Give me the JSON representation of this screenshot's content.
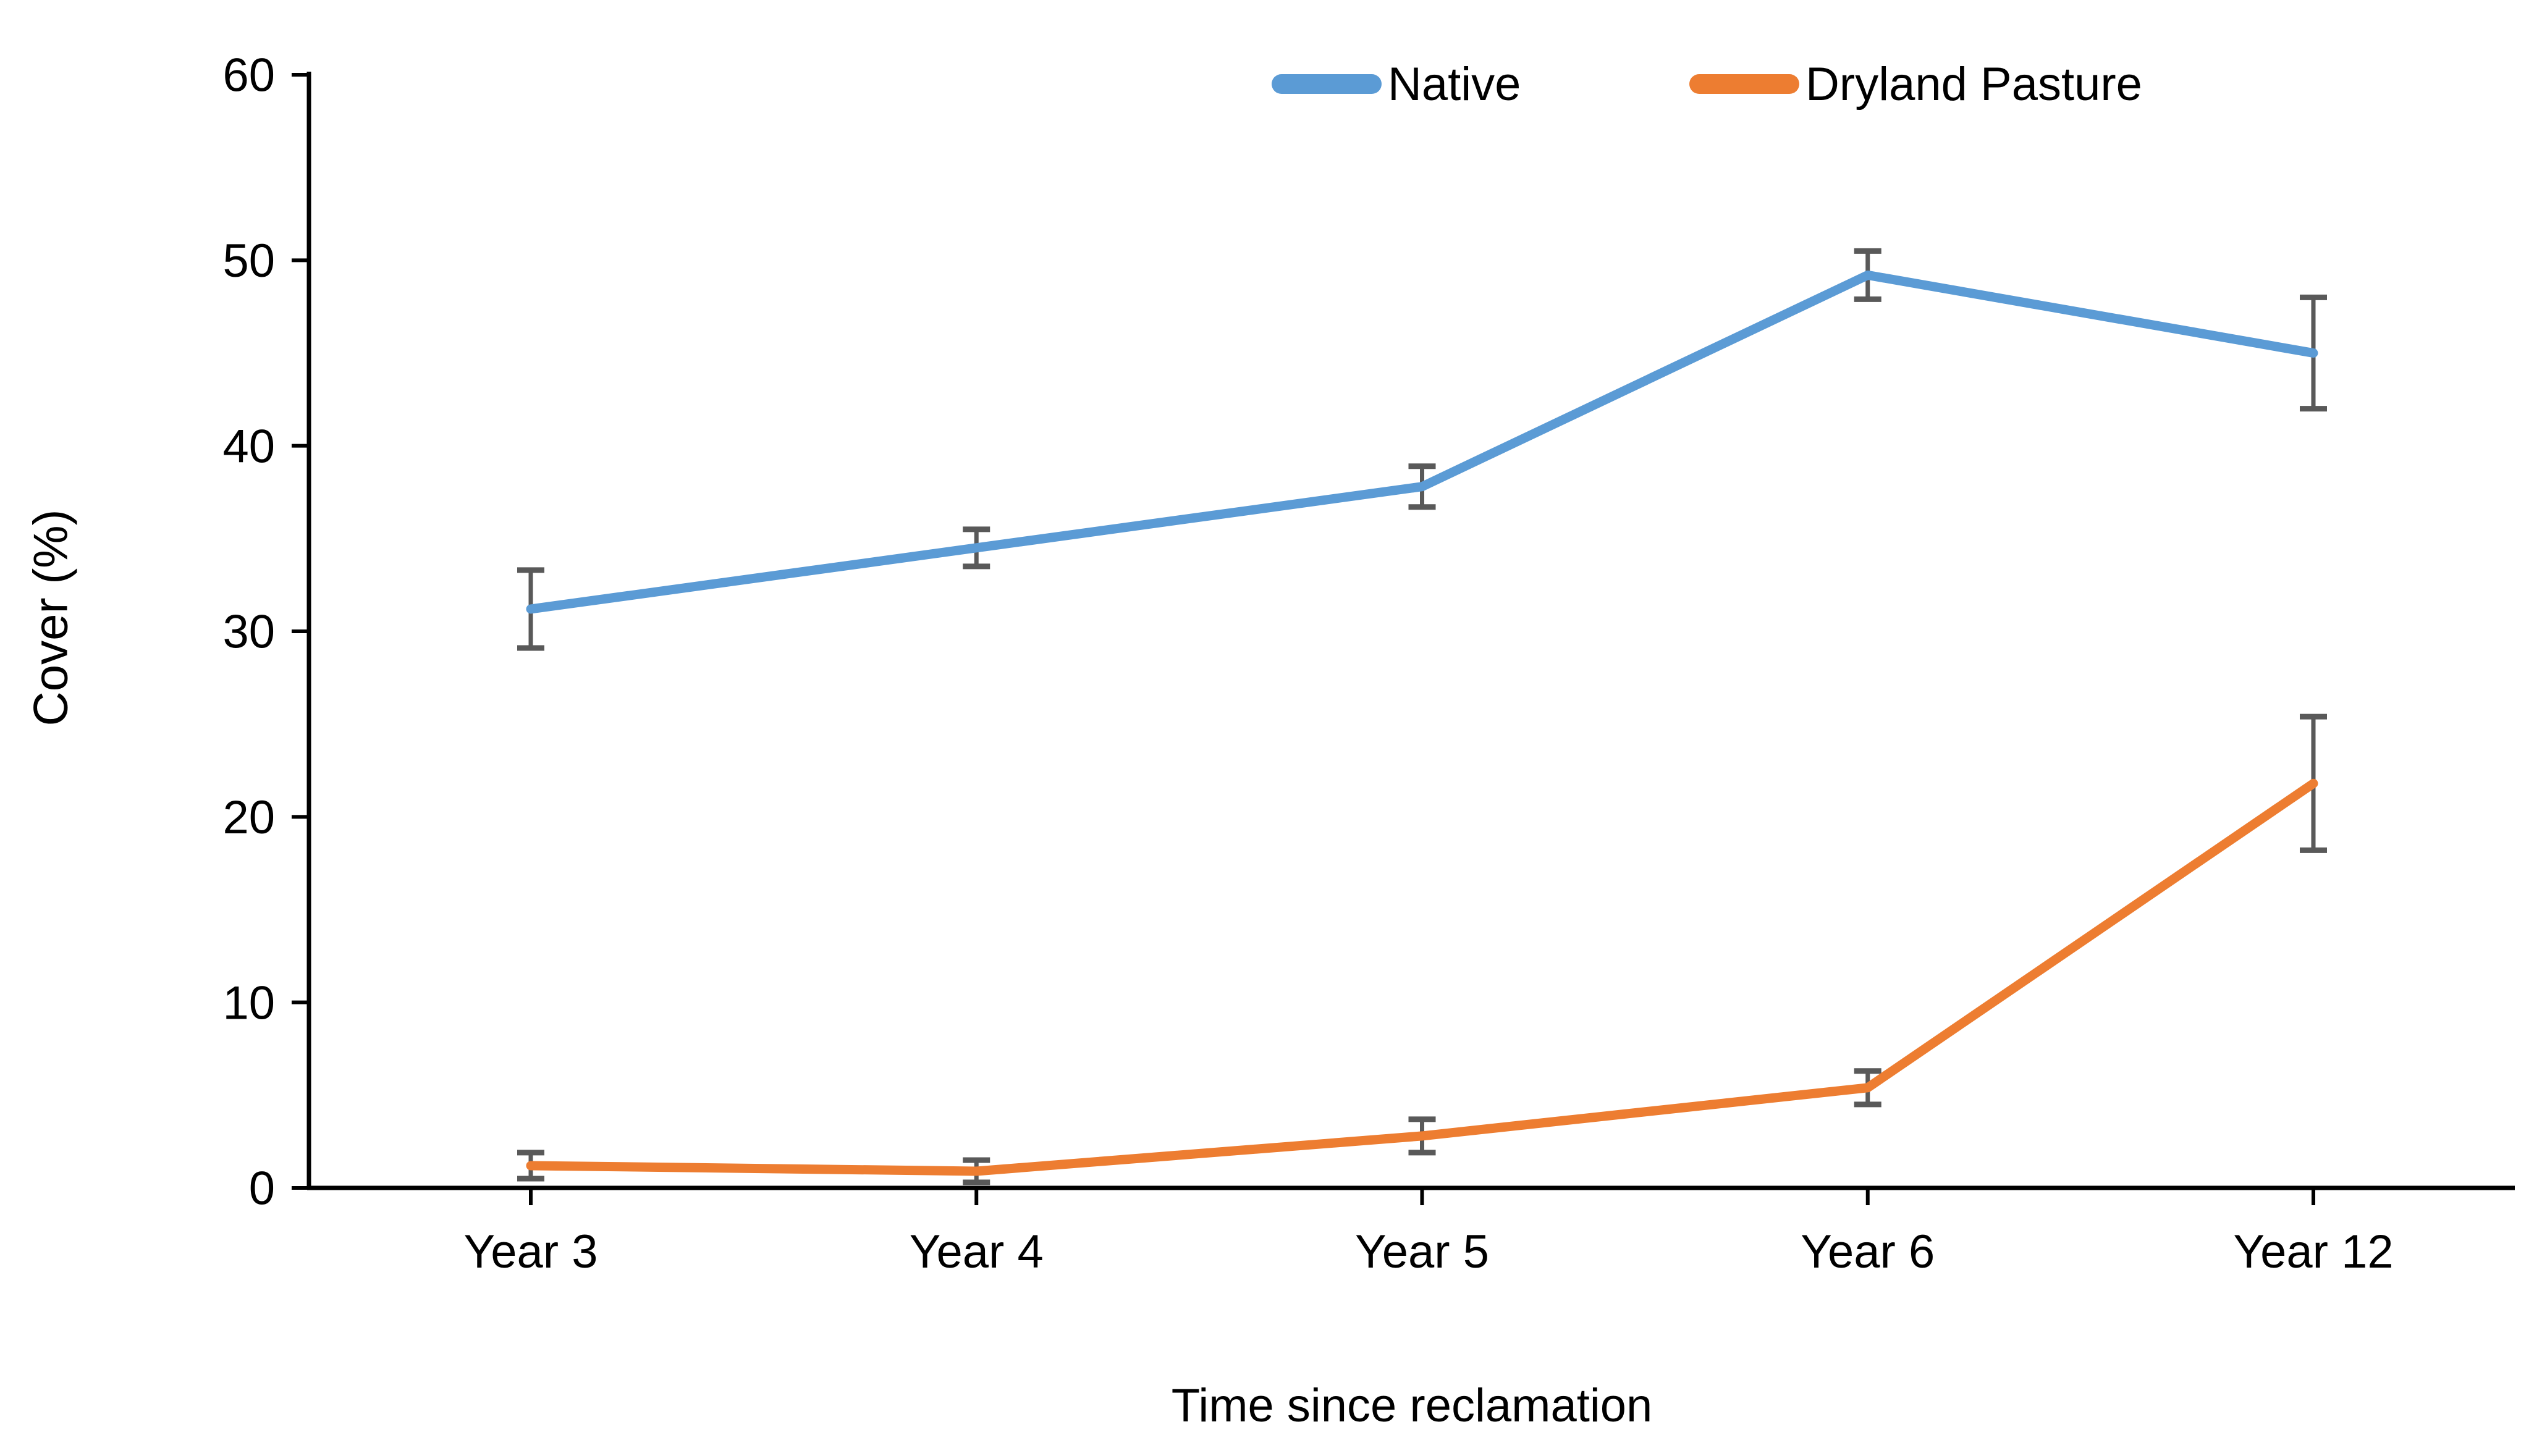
{
  "figure": {
    "background": "#ffffff",
    "text_color": "#000000"
  },
  "chart_data": {
    "type": "line",
    "title": "",
    "xlabel": "Time since reclamation",
    "ylabel": "Cover (%)",
    "categories": [
      "Year 3",
      "Year 4",
      "Year 5",
      "Year 6",
      "Year 12"
    ],
    "series": [
      {
        "name": "Native",
        "color": "#5B9BD5",
        "values": [
          31.2,
          34.5,
          37.8,
          49.2,
          45.0
        ],
        "error_bars": [
          2.1,
          1.0,
          1.1,
          1.3,
          3.0
        ]
      },
      {
        "name": "Dryland Pasture",
        "color": "#ED7D31",
        "values": [
          1.2,
          0.9,
          2.8,
          5.4,
          21.8
        ],
        "error_bars": [
          0.7,
          0.6,
          0.9,
          0.9,
          3.6
        ]
      }
    ],
    "ylim": [
      0,
      60
    ],
    "ytick_step": 10,
    "yticks": [
      0,
      10,
      20,
      30,
      40,
      50,
      60
    ],
    "grid": false,
    "legend_position": "top-center",
    "error_bar_color": "#595959",
    "axis_color": "#000000"
  }
}
